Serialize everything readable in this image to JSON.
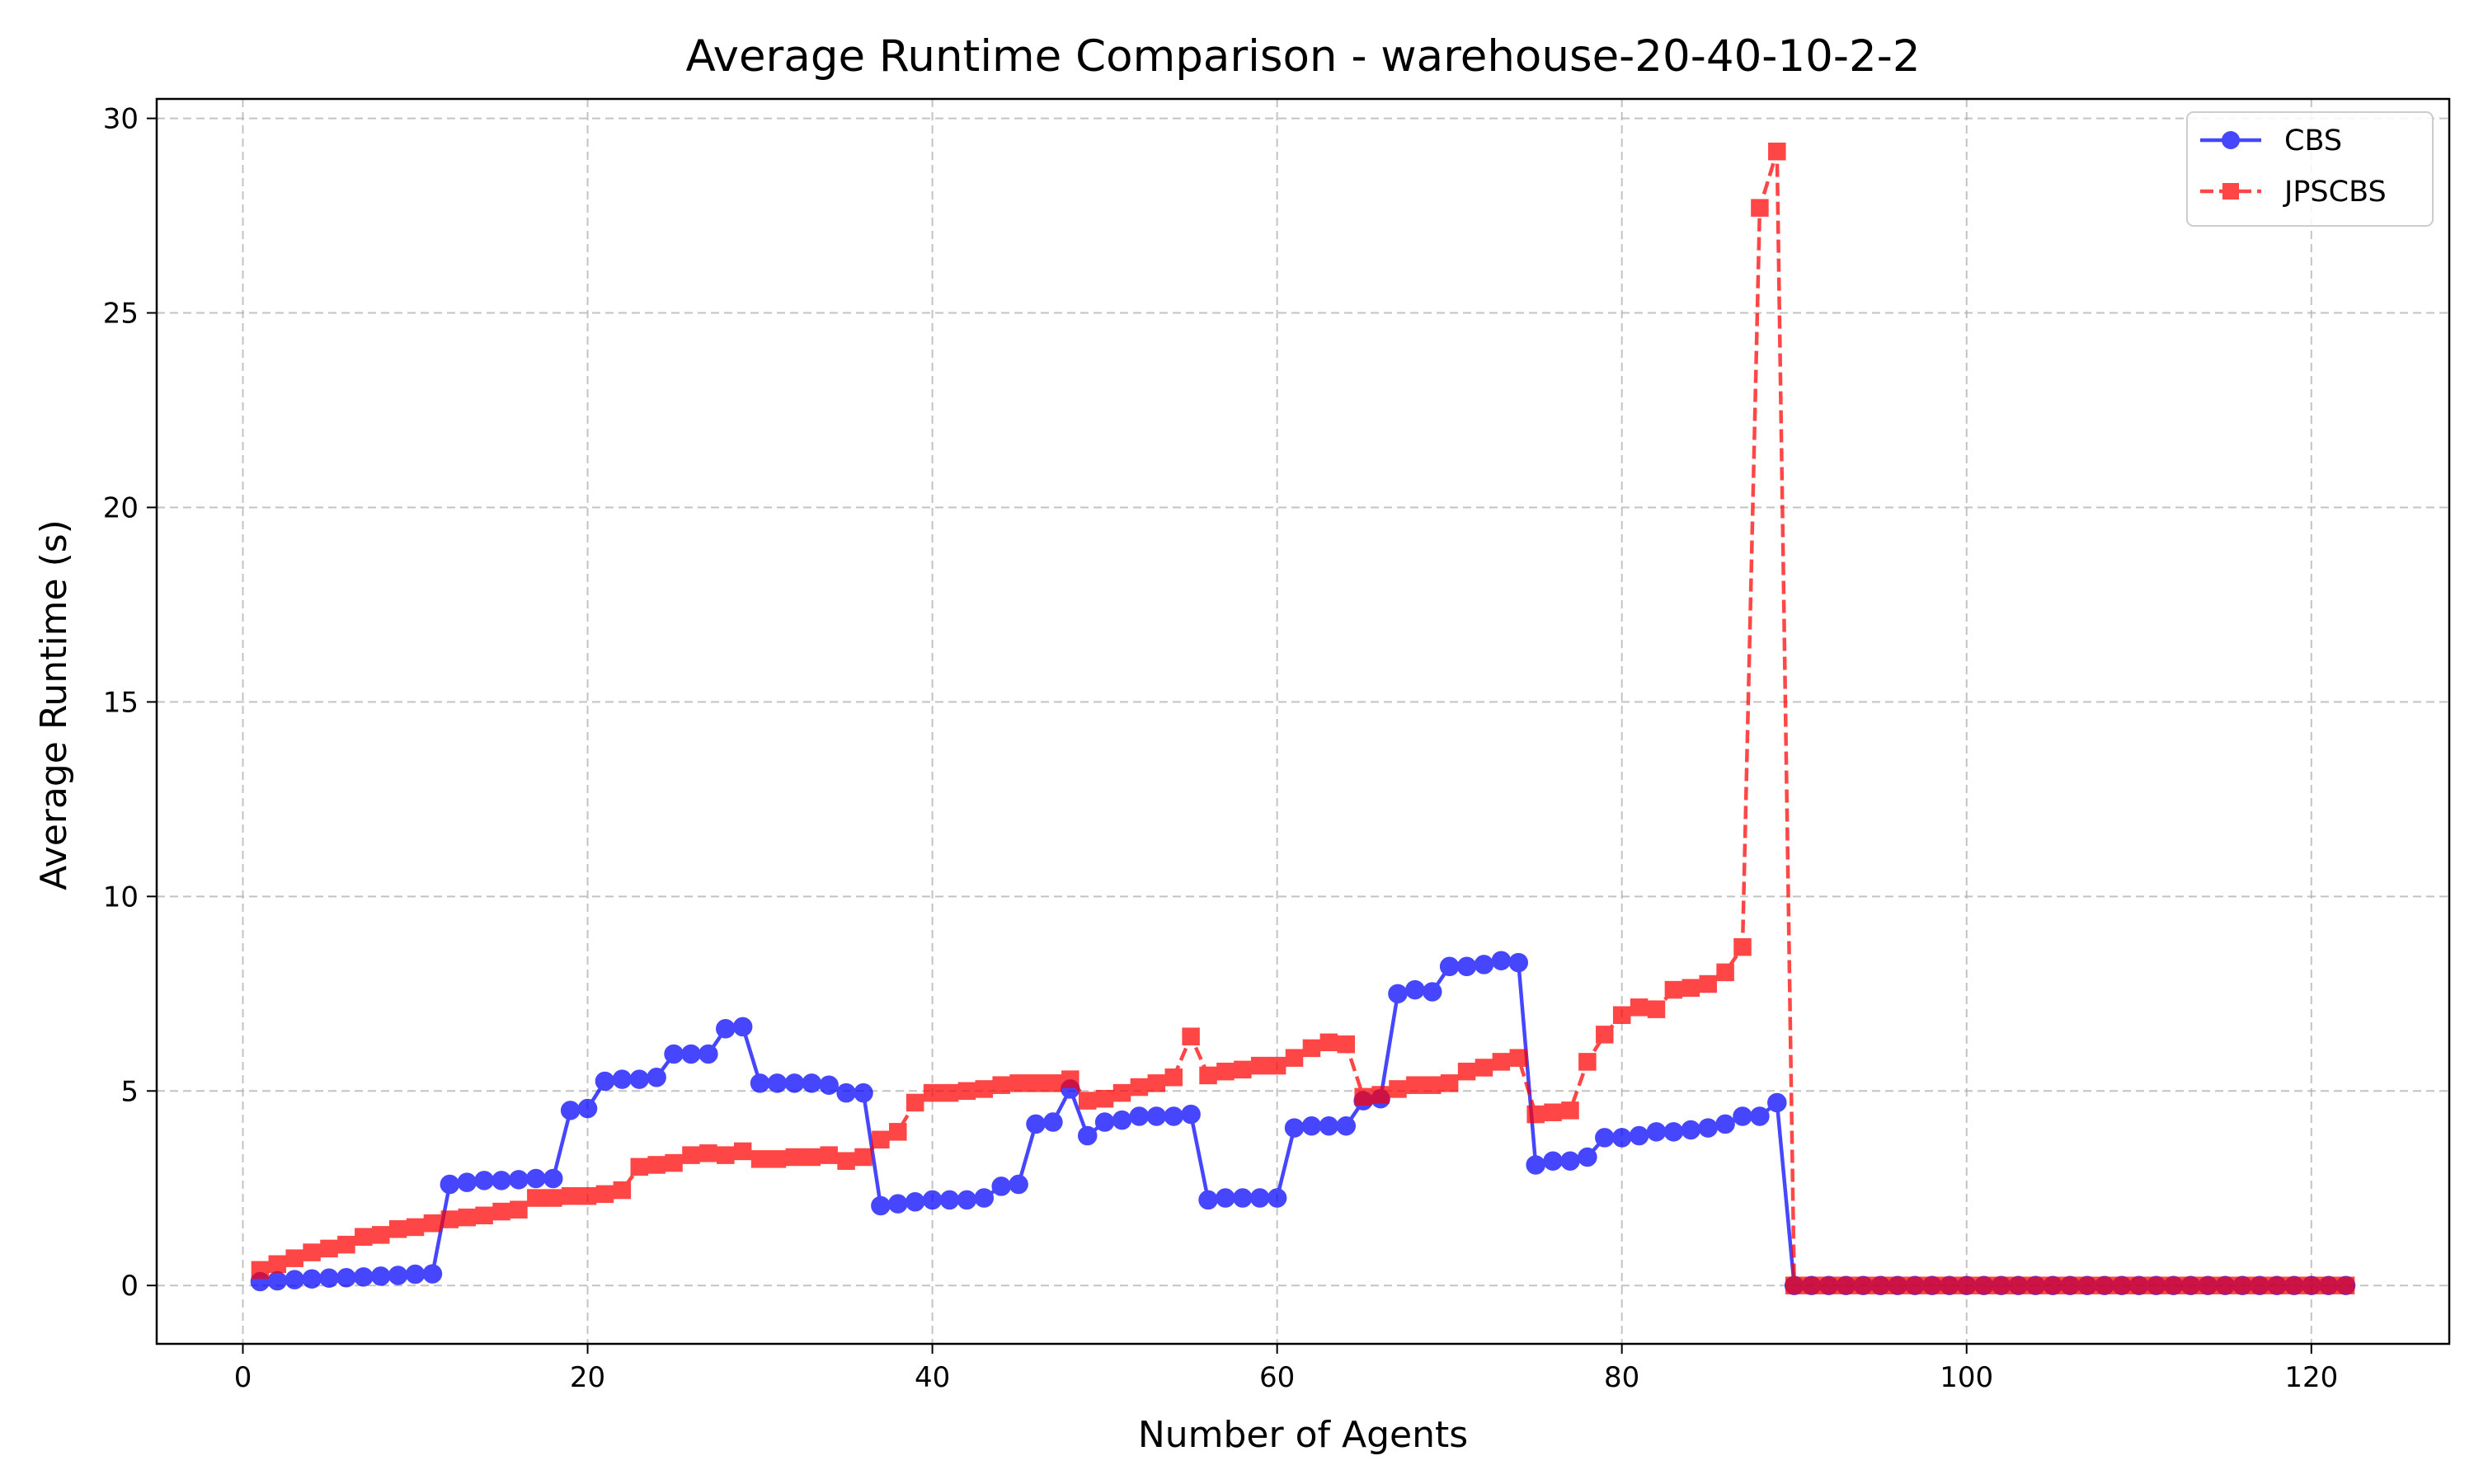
{
  "chart_data": {
    "type": "line",
    "title": "Average Runtime Comparison - warehouse-20-40-10-2-2",
    "xlabel": "Number of Agents",
    "ylabel": "Average Runtime (s)",
    "xlim": [
      -5,
      128
    ],
    "ylim": [
      -1.5,
      30.5
    ],
    "xticks": [
      0,
      20,
      40,
      60,
      80,
      100,
      120
    ],
    "yticks": [
      0,
      5,
      10,
      15,
      20,
      25,
      30
    ],
    "grid": true,
    "legend_position": "top-right",
    "x": [
      1,
      2,
      3,
      4,
      5,
      6,
      7,
      8,
      9,
      10,
      11,
      12,
      13,
      14,
      15,
      16,
      17,
      18,
      19,
      20,
      21,
      22,
      23,
      24,
      25,
      26,
      27,
      28,
      29,
      30,
      31,
      32,
      33,
      34,
      35,
      36,
      37,
      38,
      39,
      40,
      41,
      42,
      43,
      44,
      45,
      46,
      47,
      48,
      49,
      50,
      51,
      52,
      53,
      54,
      55,
      56,
      57,
      58,
      59,
      60,
      61,
      62,
      63,
      64,
      65,
      66,
      67,
      68,
      69,
      70,
      71,
      72,
      73,
      74,
      75,
      76,
      77,
      78,
      79,
      80,
      81,
      82,
      83,
      84,
      85,
      86,
      87,
      88,
      89,
      90,
      91,
      92,
      93,
      94,
      95,
      96,
      97,
      98,
      99,
      100,
      101,
      102,
      103,
      104,
      105,
      106,
      107,
      108,
      109,
      110,
      111,
      112,
      113,
      114,
      115,
      116,
      117,
      118,
      119,
      120,
      121,
      122
    ],
    "series": [
      {
        "name": "CBS",
        "color": "#0000ff",
        "line_style": "solid",
        "marker": "circle",
        "values": [
          0.1,
          0.12,
          0.15,
          0.17,
          0.19,
          0.2,
          0.22,
          0.24,
          0.26,
          0.29,
          0.3,
          2.6,
          2.65,
          2.7,
          2.7,
          2.72,
          2.75,
          2.75,
          4.5,
          4.55,
          5.25,
          5.3,
          5.3,
          5.35,
          5.95,
          5.95,
          5.95,
          6.6,
          6.65,
          5.2,
          5.2,
          5.2,
          5.2,
          5.15,
          4.95,
          4.95,
          2.05,
          2.1,
          2.15,
          2.2,
          2.2,
          2.2,
          2.25,
          2.55,
          2.6,
          4.15,
          4.2,
          5.05,
          3.85,
          4.2,
          4.25,
          4.35,
          4.35,
          4.35,
          4.4,
          2.2,
          2.25,
          2.25,
          2.25,
          2.25,
          4.05,
          4.1,
          4.1,
          4.1,
          4.75,
          4.8,
          7.5,
          7.6,
          7.55,
          8.2,
          8.2,
          8.25,
          8.35,
          8.3,
          3.1,
          3.2,
          3.2,
          3.3,
          3.8,
          3.8,
          3.85,
          3.95,
          3.95,
          4.0,
          4.05,
          4.15,
          4.35,
          4.35,
          4.7,
          0,
          0,
          0,
          0,
          0,
          0,
          0,
          0,
          0,
          0,
          0,
          0,
          0,
          0,
          0,
          0,
          0,
          0,
          0,
          0,
          0,
          0,
          0,
          0,
          0,
          0,
          0,
          0,
          0,
          0,
          0,
          0,
          0
        ]
      },
      {
        "name": "JPSCBS",
        "color": "#ff0000",
        "line_style": "dashed",
        "marker": "square",
        "values": [
          0.4,
          0.55,
          0.7,
          0.85,
          0.95,
          1.05,
          1.25,
          1.3,
          1.45,
          1.5,
          1.6,
          1.7,
          1.75,
          1.8,
          1.9,
          1.95,
          2.25,
          2.25,
          2.3,
          2.3,
          2.35,
          2.45,
          3.05,
          3.1,
          3.15,
          3.35,
          3.4,
          3.35,
          3.45,
          3.25,
          3.25,
          3.3,
          3.3,
          3.35,
          3.2,
          3.3,
          3.75,
          3.95,
          4.7,
          4.95,
          4.95,
          5.0,
          5.05,
          5.15,
          5.2,
          5.2,
          5.2,
          5.3,
          4.75,
          4.8,
          4.95,
          5.1,
          5.2,
          5.35,
          6.4,
          5.4,
          5.5,
          5.55,
          5.65,
          5.65,
          5.85,
          6.1,
          6.25,
          6.2,
          4.85,
          4.9,
          5.05,
          5.15,
          5.15,
          5.2,
          5.5,
          5.6,
          5.75,
          5.85,
          4.4,
          4.45,
          4.5,
          5.75,
          6.45,
          6.95,
          7.15,
          7.1,
          7.6,
          7.65,
          7.75,
          8.05,
          8.7,
          27.7,
          29.15,
          0,
          0,
          0,
          0,
          0,
          0,
          0,
          0,
          0,
          0,
          0,
          0,
          0,
          0,
          0,
          0,
          0,
          0,
          0,
          0,
          0,
          0,
          0,
          0,
          0,
          0,
          0,
          0,
          0,
          0,
          0,
          0,
          0
        ]
      }
    ]
  }
}
